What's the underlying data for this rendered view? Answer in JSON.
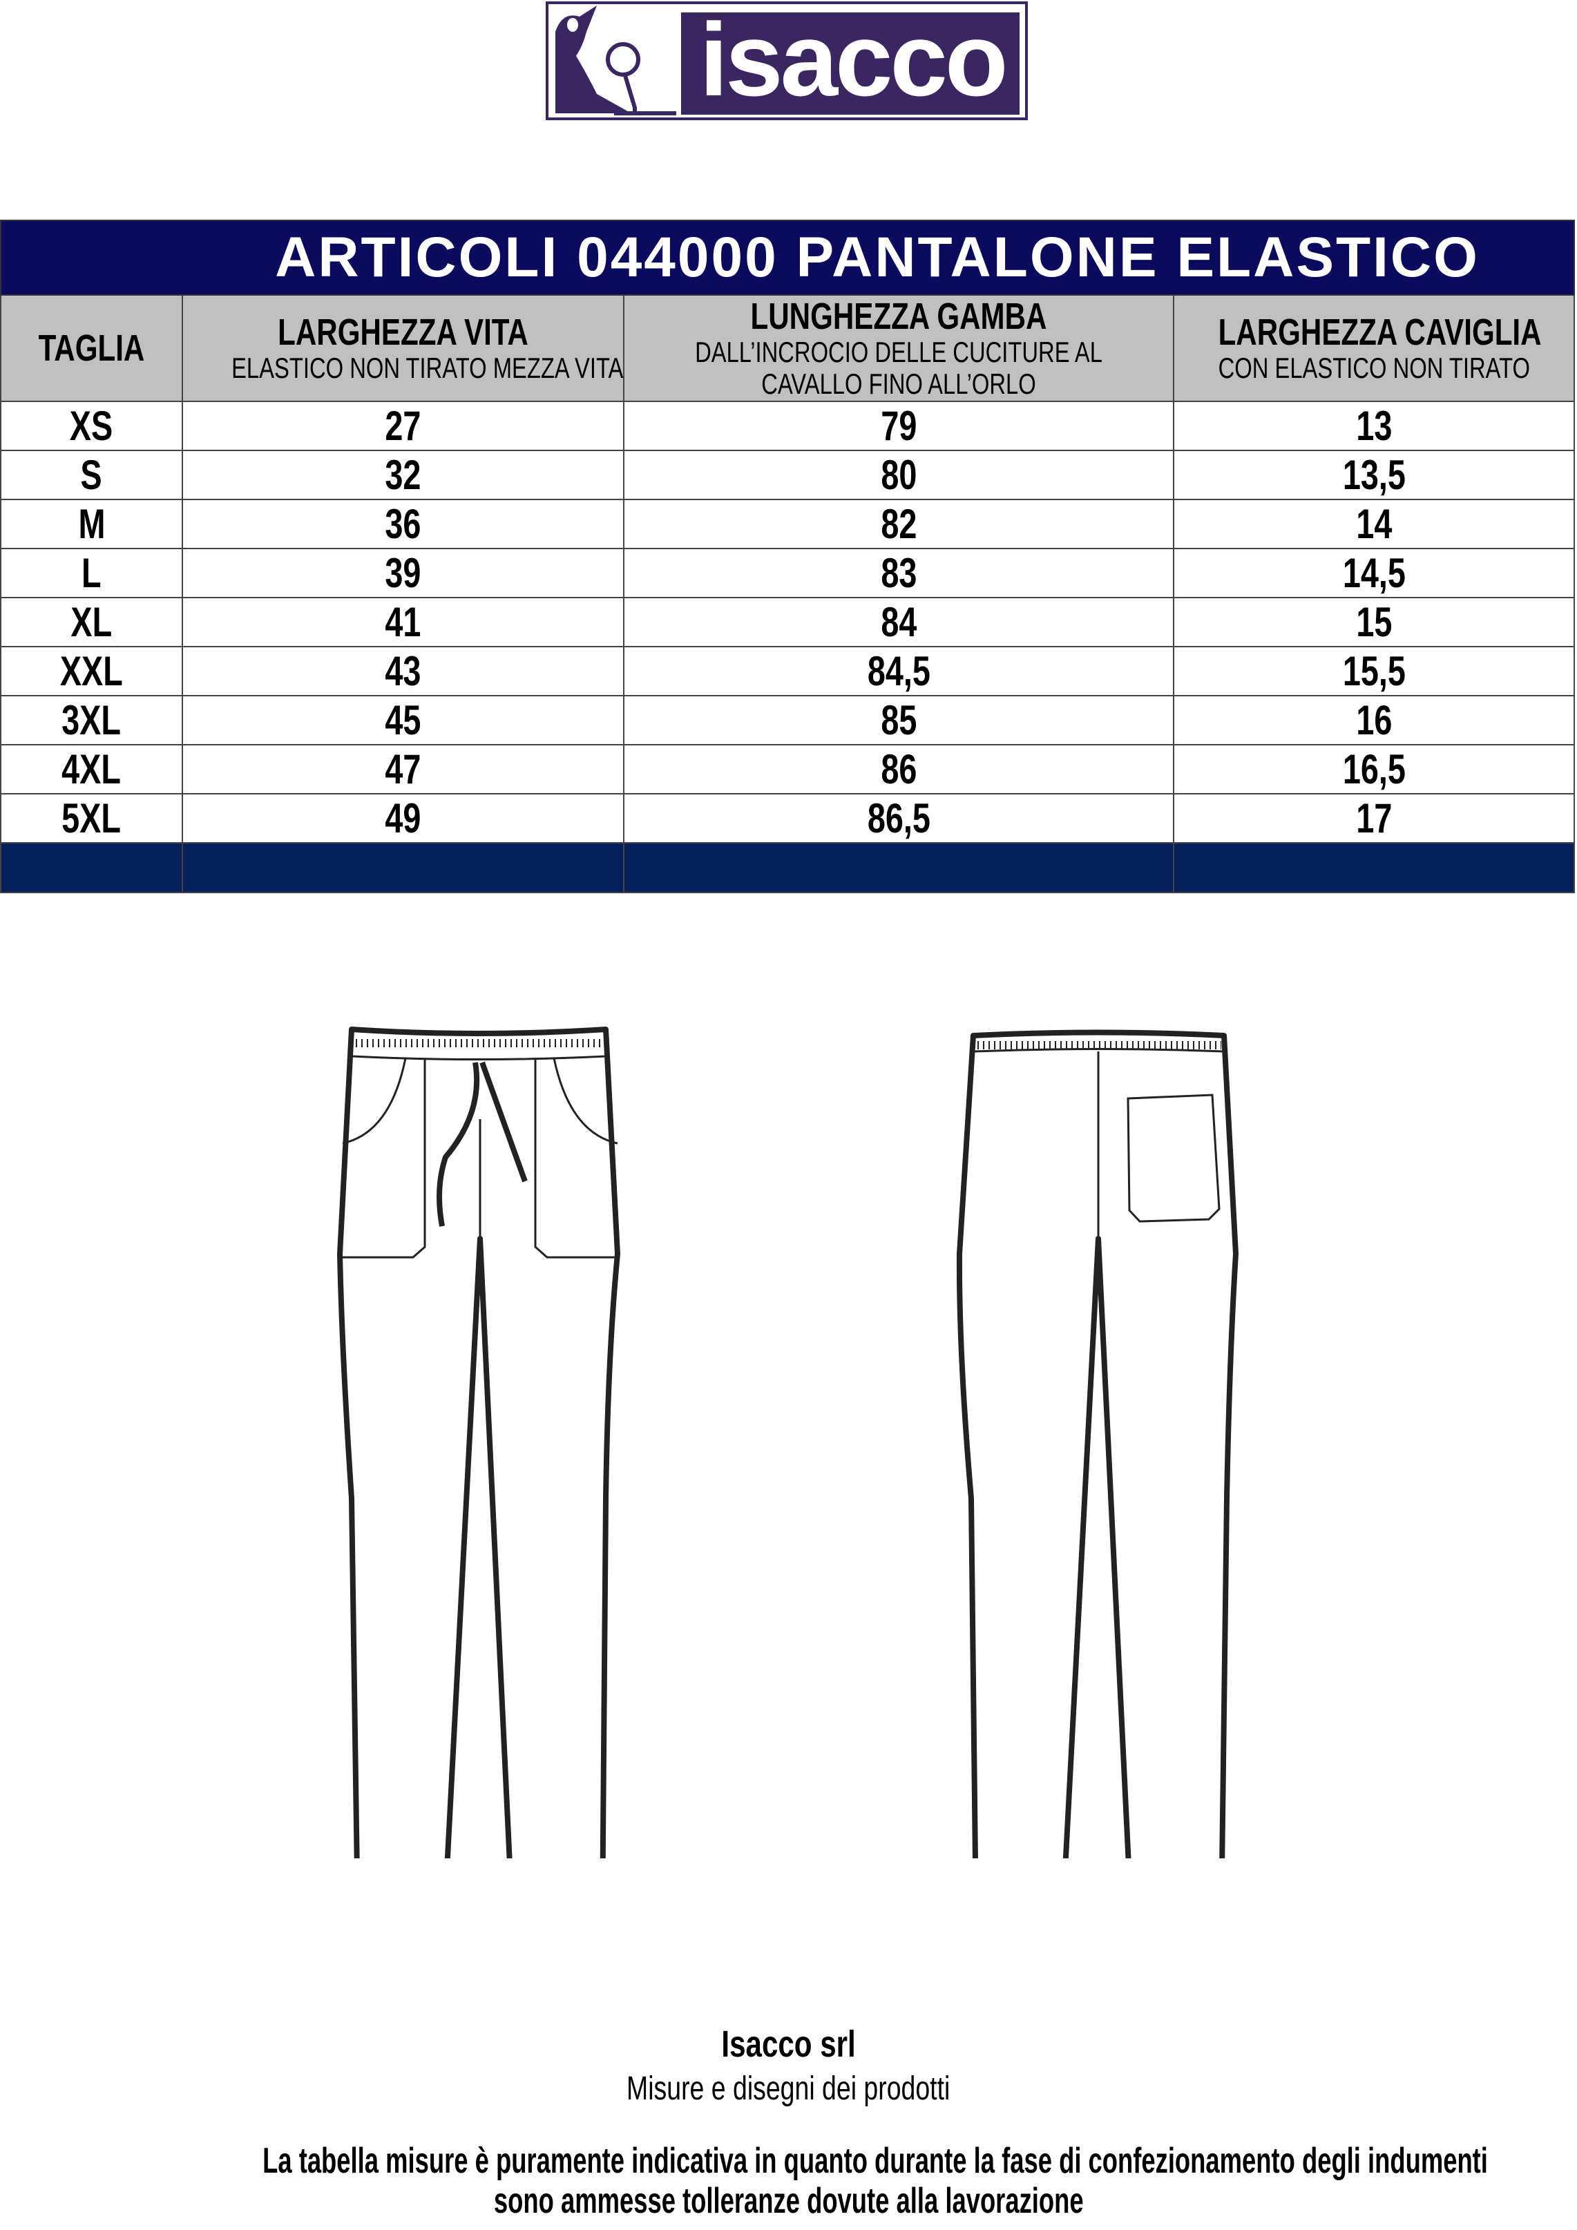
{
  "logo": {
    "text": "isacco",
    "brand_color": "#3a2762"
  },
  "title": "ARTICOLI 044000 PANTALONE ELASTICO",
  "colors": {
    "title_bg": "#0a0a5e",
    "header_bg": "#c0c0c0",
    "footer_bar": "#05205a"
  },
  "headers": [
    {
      "main": "TAGLIA",
      "sub": ""
    },
    {
      "main": "LARGHEZZA VITA",
      "sub": "ELASTICO NON TIRATO MEZZA VITA"
    },
    {
      "main": "LUNGHEZZA GAMBA",
      "sub": "DALL’INCROCIO DELLE CUCITURE AL",
      "sub2": "CAVALLO FINO ALL’ORLO"
    },
    {
      "main": "LARGHEZZA CAVIGLIA",
      "sub": "CON ELASTICO NON TIRATO"
    }
  ],
  "rows": [
    [
      "XS",
      "27",
      "79",
      "13"
    ],
    [
      "S",
      "32",
      "80",
      "13,5"
    ],
    [
      "M",
      "36",
      "82",
      "14"
    ],
    [
      "L",
      "39",
      "83",
      "14,5"
    ],
    [
      "XL",
      "41",
      "84",
      "15"
    ],
    [
      "XXL",
      "43",
      "84,5",
      "15,5"
    ],
    [
      "3XL",
      "45",
      "85",
      "16"
    ],
    [
      "4XL",
      "47",
      "86",
      "16,5"
    ],
    [
      "5XL",
      "49",
      "86,5",
      "17"
    ]
  ],
  "footer": {
    "company": "Isacco srl",
    "subtitle": "Misure e disegni dei prodotti",
    "disclaimer_line1": "La tabella misure è puramente indicativa in quanto durante la fase di confezionamento degli indumenti",
    "disclaimer_line2": "sono ammesse tolleranze dovute alla lavorazione"
  }
}
